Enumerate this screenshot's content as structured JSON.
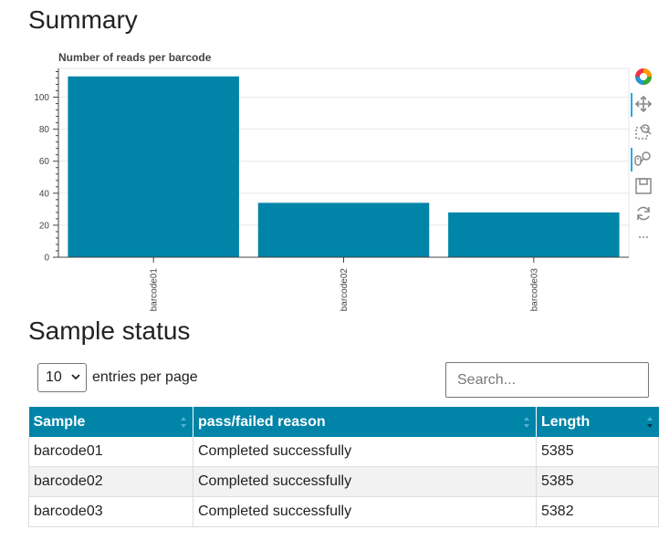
{
  "summary": {
    "heading": "Summary"
  },
  "chart_data": {
    "type": "bar",
    "title": "Number of reads per barcode",
    "categories": [
      "barcode01",
      "barcode02",
      "barcode03"
    ],
    "values": [
      113,
      34,
      28
    ],
    "ylim": [
      0,
      118
    ],
    "yticks": [
      0,
      20,
      40,
      60,
      80,
      100
    ],
    "xlabel": "",
    "ylabel": "",
    "grid": true,
    "bar_color": "#0084a8"
  },
  "toolbar": {
    "tools": [
      {
        "name": "bokeh-logo-icon",
        "active": false
      },
      {
        "name": "pan-icon",
        "active": true
      },
      {
        "name": "box-zoom-icon",
        "active": false
      },
      {
        "name": "wheel-zoom-icon",
        "active": true
      },
      {
        "name": "save-icon",
        "active": false
      },
      {
        "name": "reset-icon",
        "active": false
      },
      {
        "name": "more-icon",
        "active": false
      }
    ]
  },
  "status": {
    "heading": "Sample status",
    "entries_value": "10",
    "entries_label": "entries per page",
    "search_placeholder": "Search...",
    "columns": [
      "Sample",
      "pass/failed reason",
      "Length"
    ],
    "rows": [
      [
        "barcode01",
        "Completed successfully",
        "5385"
      ],
      [
        "barcode02",
        "Completed successfully",
        "5385"
      ],
      [
        "barcode03",
        "Completed successfully",
        "5382"
      ]
    ]
  },
  "colors": {
    "header_bg": "#0084a8",
    "bar": "#0084a8"
  }
}
